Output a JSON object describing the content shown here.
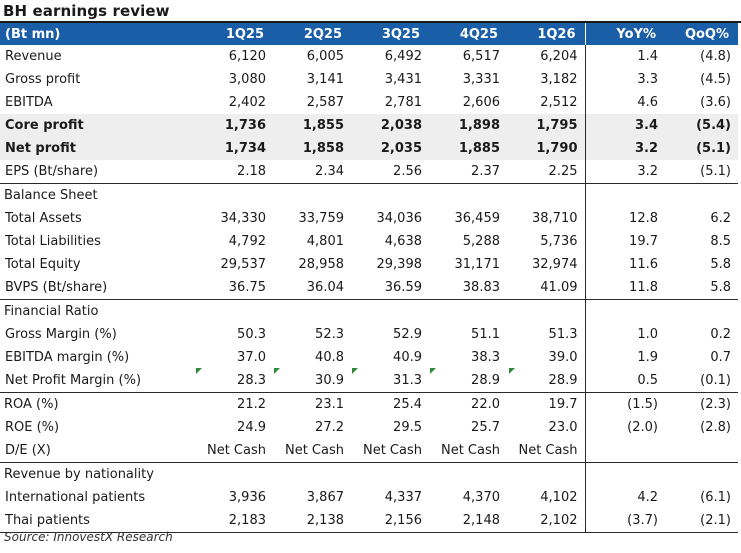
{
  "title": "BH earnings review",
  "header": {
    "unit": "(Bt mn)",
    "columns": [
      "1Q25",
      "2Q25",
      "3Q25",
      "4Q25",
      "1Q26",
      "YoY%",
      "QoQ%"
    ]
  },
  "rows": [
    {
      "label": "Revenue",
      "values": [
        "6,120",
        "6,005",
        "6,492",
        "6,517",
        "6,204",
        "1.4",
        "(4.8)"
      ]
    },
    {
      "label": "Gross profit",
      "values": [
        "3,080",
        "3,141",
        "3,431",
        "3,331",
        "3,182",
        "3.3",
        "(4.5)"
      ]
    },
    {
      "label": "EBITDA",
      "values": [
        "2,402",
        "2,587",
        "2,781",
        "2,606",
        "2,512",
        "4.6",
        "(3.6)"
      ]
    },
    {
      "label": "Core profit",
      "values": [
        "1,736",
        "1,855",
        "2,038",
        "1,898",
        "1,795",
        "3.4",
        "(5.4)"
      ]
    },
    {
      "label": "Net profit",
      "values": [
        "1,734",
        "1,858",
        "2,035",
        "1,885",
        "1,790",
        "3.2",
        "(5.1)"
      ]
    },
    {
      "label": "EPS (Bt/share)",
      "values": [
        "2.18",
        "2.34",
        "2.56",
        "2.37",
        "2.25",
        "3.2",
        "(5.1)"
      ]
    },
    {
      "label": "Balance Sheet",
      "values": [
        "",
        "",
        "",
        "",
        "",
        "",
        ""
      ]
    },
    {
      "label": "Total Assets",
      "values": [
        "34,330",
        "33,759",
        "34,036",
        "36,459",
        "38,710",
        "12.8",
        "6.2"
      ]
    },
    {
      "label": "Total Liabilities",
      "values": [
        "4,792",
        "4,801",
        "4,638",
        "5,288",
        "5,736",
        "19.7",
        "8.5"
      ]
    },
    {
      "label": "Total Equity",
      "values": [
        "29,537",
        "28,958",
        "29,398",
        "31,171",
        "32,974",
        "11.6",
        "5.8"
      ]
    },
    {
      "label": "BVPS (Bt/share)",
      "values": [
        "36.75",
        "36.04",
        "36.59",
        "38.83",
        "41.09",
        "11.8",
        "5.8"
      ]
    },
    {
      "label": "Financial Ratio",
      "values": [
        "",
        "",
        "",
        "",
        "",
        "",
        ""
      ]
    },
    {
      "label": "Gross Margin (%)",
      "values": [
        "50.3",
        "52.3",
        "52.9",
        "51.1",
        "51.3",
        "1.0",
        "0.2"
      ]
    },
    {
      "label": "EBITDA margin (%)",
      "values": [
        "37.0",
        "40.8",
        "40.9",
        "38.3",
        "39.0",
        "1.9",
        "0.7"
      ]
    },
    {
      "label": "Net Profit Margin (%)",
      "values": [
        "28.3",
        "30.9",
        "31.3",
        "28.9",
        "28.9",
        "0.5",
        "(0.1)"
      ]
    },
    {
      "label": "ROA (%)",
      "values": [
        "21.2",
        "23.1",
        "25.4",
        "22.0",
        "19.7",
        "(1.5)",
        "(2.3)"
      ]
    },
    {
      "label": "ROE (%)",
      "values": [
        "24.9",
        "27.2",
        "29.5",
        "25.7",
        "23.0",
        "(2.0)",
        "(2.8)"
      ]
    },
    {
      "label": "D/E (X)",
      "values": [
        "Net Cash",
        "Net Cash",
        "Net Cash",
        "Net Cash",
        "Net Cash",
        "",
        ""
      ]
    },
    {
      "label": "Revenue by nationality",
      "values": [
        "",
        "",
        "",
        "",
        "",
        "",
        ""
      ]
    },
    {
      "label": "International patients",
      "values": [
        "3,936",
        "3,867",
        "4,337",
        "4,370",
        "4,102",
        "4.2",
        "(6.1)"
      ]
    },
    {
      "label": "Thai patients",
      "values": [
        "2,183",
        "2,138",
        "2,156",
        "2,148",
        "2,102",
        "(3.7)",
        "(2.1)"
      ]
    }
  ],
  "source": "Source: InnovestX Research",
  "colors": {
    "header_bg": "#1b5ea8",
    "highlight_bg": "#eeeeee",
    "flag": "#2f8a3a"
  }
}
